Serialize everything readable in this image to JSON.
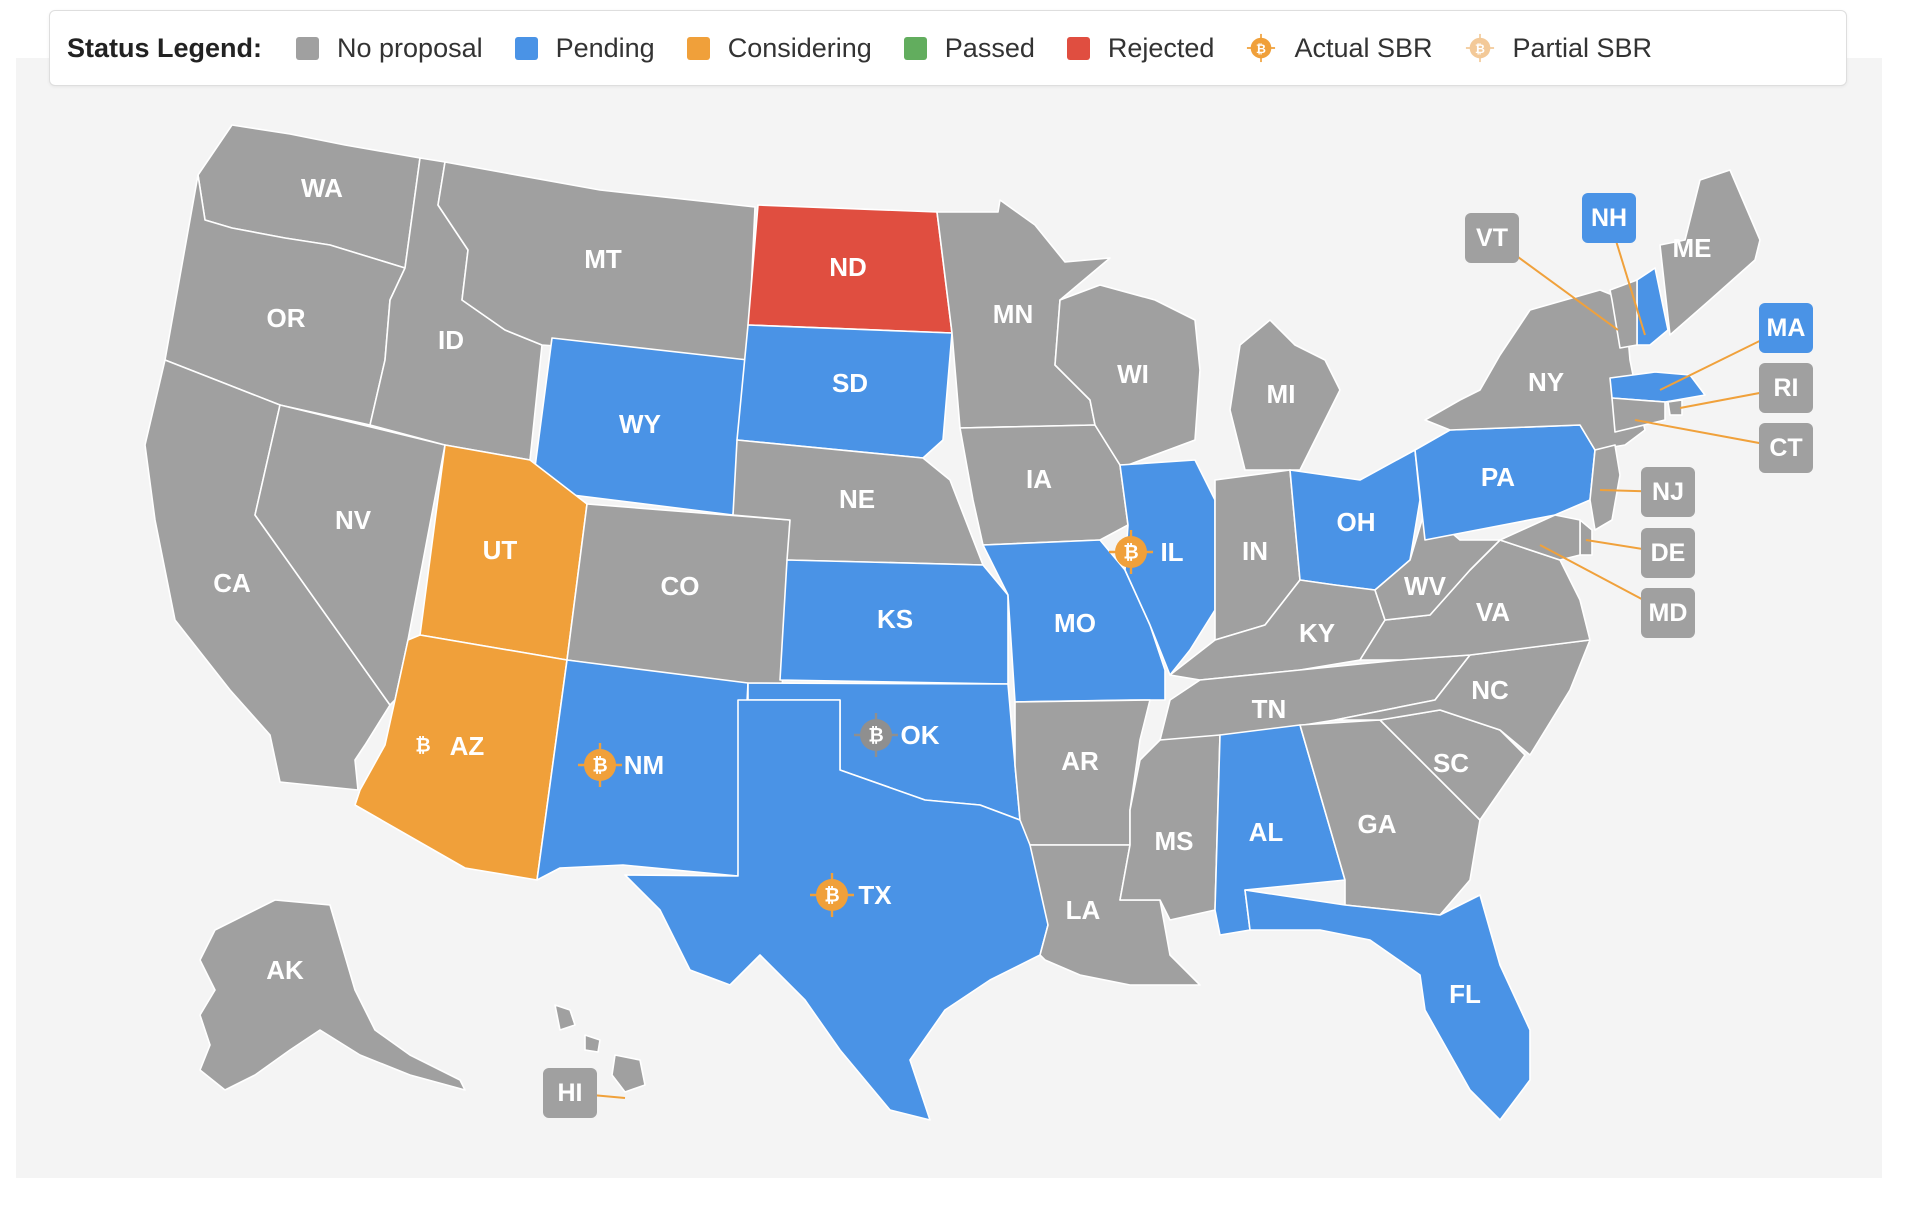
{
  "legend": {
    "title": "Status Legend:",
    "items": [
      {
        "label": "No proposal",
        "status": "none"
      },
      {
        "label": "Pending",
        "status": "pending"
      },
      {
        "label": "Considering",
        "status": "considering"
      },
      {
        "label": "Passed",
        "status": "passed"
      },
      {
        "label": "Rejected",
        "status": "rejected"
      },
      {
        "label": "Actual SBR",
        "icon": "bitcoin-target-icon"
      },
      {
        "label": "Partial SBR",
        "icon": "bitcoin-target-faded-icon"
      }
    ]
  },
  "colors": {
    "none": "#a0a0a0",
    "pending": "#4a93e6",
    "considering": "#f0a03a",
    "passed": "#62ad5e",
    "rejected": "#e04e40",
    "sbr_icon": "#f0a03a",
    "sbr_partial_icon": "#f3c998",
    "sbr_gray_icon": "#8f8f8f",
    "panel": "#f4f4f4"
  },
  "states": [
    {
      "code": "WA",
      "status": "none"
    },
    {
      "code": "OR",
      "status": "none"
    },
    {
      "code": "CA",
      "status": "none"
    },
    {
      "code": "NV",
      "status": "none"
    },
    {
      "code": "ID",
      "status": "none"
    },
    {
      "code": "MT",
      "status": "none"
    },
    {
      "code": "WY",
      "status": "pending"
    },
    {
      "code": "UT",
      "status": "considering"
    },
    {
      "code": "AZ",
      "status": "considering",
      "sbr": "actual"
    },
    {
      "code": "CO",
      "status": "none"
    },
    {
      "code": "NM",
      "status": "pending",
      "sbr": "actual"
    },
    {
      "code": "ND",
      "status": "rejected"
    },
    {
      "code": "SD",
      "status": "pending"
    },
    {
      "code": "NE",
      "status": "none"
    },
    {
      "code": "KS",
      "status": "pending"
    },
    {
      "code": "OK",
      "status": "pending",
      "sbr": "gray"
    },
    {
      "code": "TX",
      "status": "pending",
      "sbr": "actual"
    },
    {
      "code": "MN",
      "status": "none"
    },
    {
      "code": "IA",
      "status": "none"
    },
    {
      "code": "MO",
      "status": "pending"
    },
    {
      "code": "AR",
      "status": "none"
    },
    {
      "code": "LA",
      "status": "none"
    },
    {
      "code": "WI",
      "status": "none"
    },
    {
      "code": "IL",
      "status": "pending",
      "sbr": "actual"
    },
    {
      "code": "MI",
      "status": "none"
    },
    {
      "code": "IN",
      "status": "none"
    },
    {
      "code": "OH",
      "status": "pending"
    },
    {
      "code": "KY",
      "status": "none"
    },
    {
      "code": "TN",
      "status": "none"
    },
    {
      "code": "MS",
      "status": "none"
    },
    {
      "code": "AL",
      "status": "pending"
    },
    {
      "code": "GA",
      "status": "none"
    },
    {
      "code": "FL",
      "status": "pending"
    },
    {
      "code": "SC",
      "status": "none"
    },
    {
      "code": "NC",
      "status": "none"
    },
    {
      "code": "VA",
      "status": "none"
    },
    {
      "code": "WV",
      "status": "none"
    },
    {
      "code": "PA",
      "status": "pending"
    },
    {
      "code": "NY",
      "status": "none"
    },
    {
      "code": "ME",
      "status": "none"
    },
    {
      "code": "AK",
      "status": "none"
    },
    {
      "code": "NH",
      "status": "pending"
    },
    {
      "code": "VT",
      "status": "none"
    },
    {
      "code": "MA",
      "status": "pending"
    },
    {
      "code": "RI",
      "status": "none"
    },
    {
      "code": "CT",
      "status": "none"
    },
    {
      "code": "NJ",
      "status": "none"
    },
    {
      "code": "DE",
      "status": "none"
    },
    {
      "code": "MD",
      "status": "none"
    },
    {
      "code": "HI",
      "status": "none"
    }
  ]
}
